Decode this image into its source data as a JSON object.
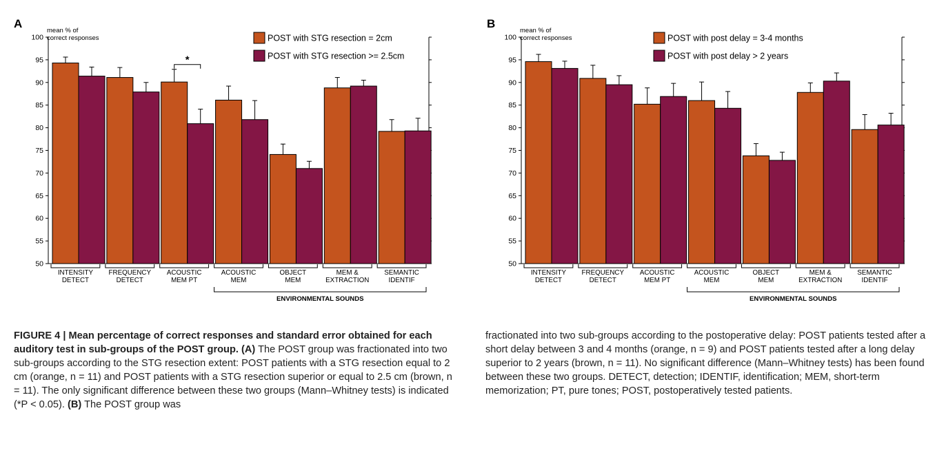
{
  "chart_data": [
    {
      "type": "bar",
      "panel_label": "A",
      "ylabel": "mean % of\ncorrect responses",
      "ylim": [
        50,
        100
      ],
      "yticks": [
        50,
        55,
        60,
        65,
        70,
        75,
        80,
        85,
        90,
        95,
        100
      ],
      "categories": [
        "INTENSITY\nDETECT",
        "FREQUENCY\nDETECT",
        "ACOUSTIC\nMEM PT",
        "ACOUSTIC\nMEM",
        "OBJECT\nMEM",
        "MEM &\nEXTRACTION",
        "SEMANTIC\nIDENTIF"
      ],
      "group_label": "ENVIRONMENTAL SOUNDS",
      "group_span": [
        3,
        6
      ],
      "legend_position": "top-right",
      "series": [
        {
          "name": "POST with STG resection = 2cm",
          "color": "#c4541e",
          "values": [
            94.3,
            91.1,
            90.1,
            86.1,
            74.1,
            88.8,
            79.2
          ],
          "errors": [
            1.3,
            2.2,
            2.8,
            3.1,
            2.3,
            2.3,
            2.6
          ]
        },
        {
          "name": "POST with STG resection >= 2.5cm",
          "color": "#841645",
          "values": [
            91.4,
            87.9,
            80.9,
            81.8,
            71.0,
            89.2,
            79.3
          ],
          "errors": [
            2.0,
            2.1,
            3.2,
            4.2,
            1.6,
            1.3,
            2.8
          ]
        }
      ],
      "significance": {
        "category_index": 2,
        "label": "*"
      }
    },
    {
      "type": "bar",
      "panel_label": "B",
      "ylabel": "mean % of\ncorrect responses",
      "ylim": [
        50,
        100
      ],
      "yticks": [
        50,
        55,
        60,
        65,
        70,
        75,
        80,
        85,
        90,
        95,
        100
      ],
      "categories": [
        "INTENSITY\nDETECT",
        "FREQUENCY\nDETECT",
        "ACOUSTIC\nMEM PT",
        "ACOUSTIC\nMEM",
        "OBJECT\nMEM",
        "MEM &\nEXTRACTION",
        "SEMANTIC\nIDENTIF"
      ],
      "group_label": "ENVIRONMENTAL SOUNDS",
      "group_span": [
        3,
        6
      ],
      "legend_position": "top-left",
      "series": [
        {
          "name": "POST with post delay = 3-4 months",
          "color": "#c4541e",
          "values": [
            94.6,
            90.9,
            85.2,
            86.0,
            73.8,
            87.8,
            79.6
          ],
          "errors": [
            1.6,
            2.9,
            3.6,
            4.1,
            2.7,
            2.1,
            3.3
          ]
        },
        {
          "name": "POST with post delay > 2 years",
          "color": "#841645",
          "values": [
            93.1,
            89.5,
            86.9,
            84.3,
            72.8,
            90.3,
            80.6
          ],
          "errors": [
            1.6,
            2.0,
            2.9,
            3.7,
            1.8,
            1.8,
            2.6
          ]
        }
      ]
    }
  ],
  "caption_left": {
    "title": "FIGURE 4 | Mean percentage of correct responses and standard error obtained for each auditory test in sub-groups of the POST group.",
    "label_a": "(A)",
    "text_a": "The POST group was fractionated into two sub-groups according to the STG resection extent: POST patients with a STG resection equal to 2 cm (orange, n = 11) and POST patients with a STG resection superior or equal to 2.5 cm (brown, n = 11). The only significant difference between these two groups (Mann–Whitney tests) is indicated (*P < 0.05).",
    "label_b": "(B)",
    "text_b": "The POST group was"
  },
  "caption_right": {
    "text": "fractionated into two sub-groups according to the postoperative delay: POST patients tested after a short delay between 3 and 4 months (orange, n = 9) and POST patients tested after a long delay superior to 2 years (brown, n = 11). No significant difference (Mann–Whitney tests) has been found between these two groups. DETECT, detection; IDENTIF, identification; MEM, short-term memorization; PT, pure tones; POST, postoperatively tested patients."
  }
}
